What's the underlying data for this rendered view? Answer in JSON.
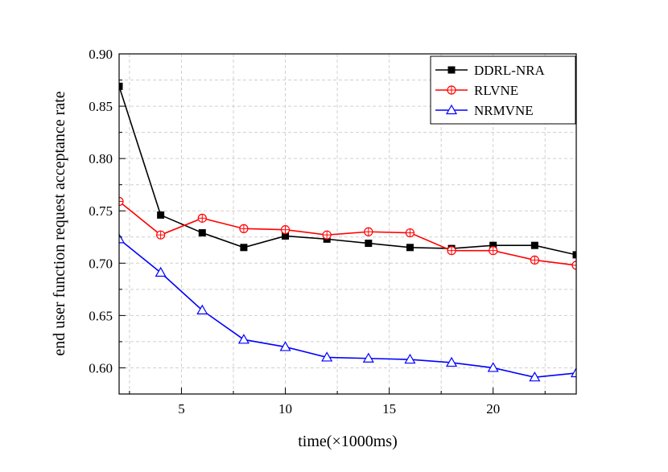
{
  "chart_data": {
    "type": "line",
    "title": "",
    "xlabel": "time(×1000ms)",
    "ylabel": "end user function request acceptance rate",
    "xlim": [
      2,
      24
    ],
    "ylim": [
      0.575,
      0.9
    ],
    "xticks": [
      5,
      10,
      15,
      20
    ],
    "xtick_labels": [
      "5",
      "10",
      "15",
      "20"
    ],
    "yticks": [
      0.6,
      0.65,
      0.7,
      0.75,
      0.8,
      0.85,
      0.9
    ],
    "ytick_labels": [
      "0.60",
      "0.65",
      "0.70",
      "0.75",
      "0.80",
      "0.85",
      "0.90"
    ],
    "grid": true,
    "legend_position": "top-right",
    "x": [
      2,
      4,
      6,
      8,
      10,
      12,
      14,
      16,
      18,
      20,
      22,
      24
    ],
    "series": [
      {
        "name": "DDRL-NRA",
        "color": "#000000",
        "marker": "filled-square",
        "values": [
          0.869,
          0.746,
          0.729,
          0.715,
          0.726,
          0.723,
          0.719,
          0.715,
          0.714,
          0.717,
          0.717,
          0.708
        ]
      },
      {
        "name": "RLVNE",
        "color": "#ff0000",
        "marker": "circle-plus",
        "values": [
          0.759,
          0.727,
          0.743,
          0.733,
          0.732,
          0.727,
          0.73,
          0.729,
          0.712,
          0.712,
          0.703,
          0.698
        ]
      },
      {
        "name": "NRMVNE",
        "color": "#0000ff",
        "marker": "open-triangle",
        "values": [
          0.723,
          0.691,
          0.655,
          0.627,
          0.62,
          0.61,
          0.609,
          0.608,
          0.605,
          0.6,
          0.591,
          0.595
        ]
      }
    ]
  }
}
